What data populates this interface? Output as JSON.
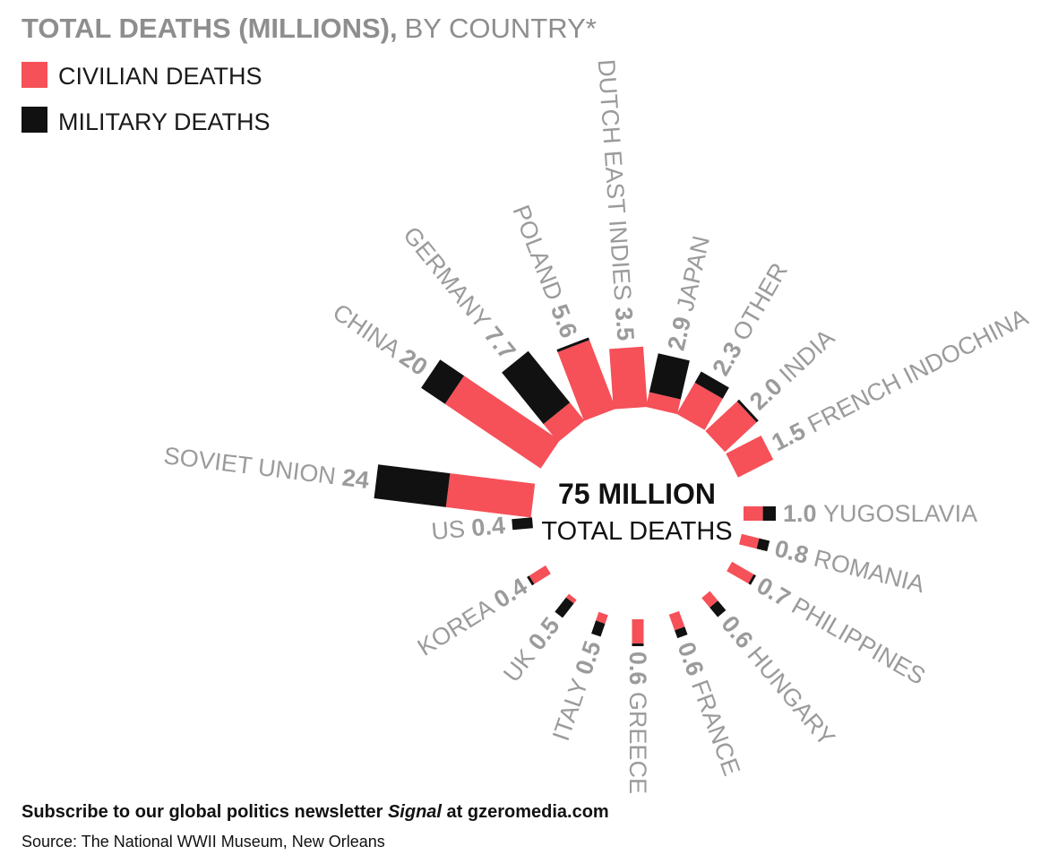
{
  "chart_data": {
    "type": "radial-bar",
    "title": "TOTAL DEATHS (MILLIONS),",
    "subtitle": "BY COUNTRY*",
    "legend": [
      {
        "label": "CIVILIAN DEATHS",
        "color": "#f65058"
      },
      {
        "label": "MILITARY DEATHS",
        "color": "#111111"
      }
    ],
    "center_value": "75 MILLION",
    "center_label": "TOTAL DEATHS",
    "units": "millions",
    "series": [
      {
        "name": "SOVIET UNION",
        "total": "24",
        "value": 24,
        "civilian": 13.0,
        "military": 11.0
      },
      {
        "name": "CHINA",
        "total": "20",
        "value": 20,
        "civilian": 16.0,
        "military": 4.0
      },
      {
        "name": "GERMANY",
        "total": "7.7",
        "value": 7.7,
        "civilian": 2.0,
        "military": 5.7
      },
      {
        "name": "POLAND",
        "total": "5.6",
        "value": 5.6,
        "civilian": 5.4,
        "military": 0.2
      },
      {
        "name": "DUTCH EAST INDIES",
        "total": "3.5",
        "value": 3.5,
        "civilian": 3.5,
        "military": 0.0
      },
      {
        "name": "JAPAN",
        "total": "2.9",
        "value": 2.9,
        "civilian": 0.8,
        "military": 2.1
      },
      {
        "name": "OTHER",
        "total": "2.3",
        "value": 2.3,
        "civilian": 1.7,
        "military": 0.6
      },
      {
        "name": "INDIA",
        "total": "2.0",
        "value": 2.0,
        "civilian": 1.9,
        "military": 0.1
      },
      {
        "name": "FRENCH INDOCHINA",
        "total": "1.5",
        "value": 1.5,
        "civilian": 1.5,
        "military": 0.0
      },
      {
        "name": "YUGOSLAVIA",
        "total": "1.0",
        "value": 1.0,
        "civilian": 0.6,
        "military": 0.4
      },
      {
        "name": "ROMANIA",
        "total": "0.8",
        "value": 0.8,
        "civilian": 0.5,
        "military": 0.3
      },
      {
        "name": "PHILIPPINES",
        "total": "0.7",
        "value": 0.7,
        "civilian": 0.65,
        "military": 0.05
      },
      {
        "name": "HUNGARY",
        "total": "0.6",
        "value": 0.6,
        "civilian": 0.3,
        "military": 0.3
      },
      {
        "name": "FRANCE",
        "total": "0.6",
        "value": 0.6,
        "civilian": 0.4,
        "military": 0.2
      },
      {
        "name": "GREECE",
        "total": "0.6",
        "value": 0.6,
        "civilian": 0.58,
        "military": 0.02
      },
      {
        "name": "ITALY",
        "total": "0.5",
        "value": 0.5,
        "civilian": 0.2,
        "military": 0.3
      },
      {
        "name": "UK",
        "total": "0.5",
        "value": 0.5,
        "civilian": 0.1,
        "military": 0.4
      },
      {
        "name": "KOREA",
        "total": "0.4",
        "value": 0.4,
        "civilian": 0.38,
        "military": 0.02
      },
      {
        "name": "US",
        "total": "0.4",
        "value": 0.4,
        "civilian": 0.0,
        "military": 0.4
      }
    ]
  },
  "footer": {
    "subscribe_prefix": "Subscribe to our global politics newsletter ",
    "subscribe_signal": "Signal",
    "subscribe_suffix": " at gzeromedia.com",
    "source": "Source: The National WWII Museum, New Orleans"
  }
}
